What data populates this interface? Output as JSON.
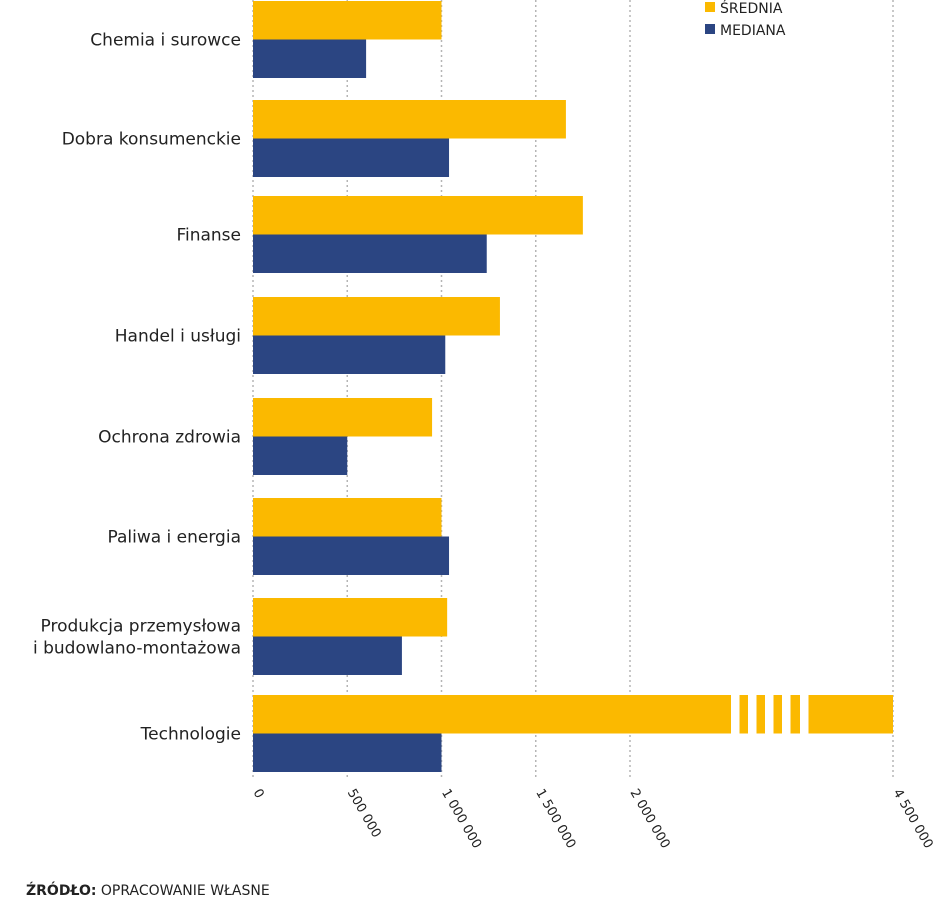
{
  "chart_data": {
    "type": "bar",
    "orientation": "horizontal",
    "title": "",
    "xlabel": "",
    "ylabel": "",
    "categories": [
      [
        "Chemia i surowce"
      ],
      [
        "Dobra konsumenckie"
      ],
      [
        "Finanse"
      ],
      [
        "Handel i usługi"
      ],
      [
        "Ochrona zdrowia"
      ],
      [
        "Paliwa i energia"
      ],
      [
        "Produkcja przemysłowa",
        "i budowlano-montażowa"
      ],
      [
        "Technologie"
      ]
    ],
    "series": [
      {
        "name": "ŚREDNIA",
        "color": "#FBB900",
        "values": [
          1000000,
          1660000,
          1750000,
          1310000,
          950000,
          1000000,
          1030000,
          4500000
        ]
      },
      {
        "name": "MEDIANA",
        "color": "#2B4582",
        "values": [
          600000,
          1040000,
          1240000,
          1020000,
          500000,
          1040000,
          790000,
          1000000
        ]
      }
    ],
    "xlim": [
      0,
      4500000
    ],
    "axis_break": {
      "from": 2500000,
      "to": 4500000
    },
    "x_ticks": [
      {
        "value": 0,
        "label": "0"
      },
      {
        "value": 500000,
        "label": "500 000"
      },
      {
        "value": 1000000,
        "label": "1 000 000"
      },
      {
        "value": 1500000,
        "label": "1 500 000"
      },
      {
        "value": 2000000,
        "label": "2 000 000"
      },
      {
        "value": 4500000,
        "label": "4 500 000"
      }
    ],
    "grid": true,
    "legend_position": "top-right"
  },
  "source": {
    "label": "ŹRÓDŁO:",
    "text": "OPRACOWANIE WŁASNE"
  }
}
